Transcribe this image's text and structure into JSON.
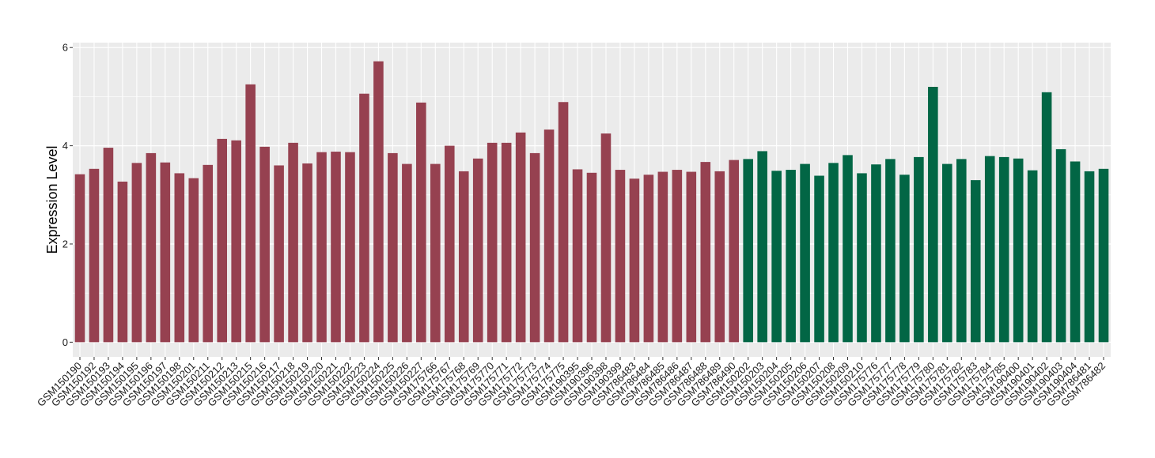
{
  "colors": {
    "panel_background": "#EBEBEB",
    "gridline": "#FFFFFF",
    "tick": "#333333",
    "group_a": "#964150",
    "group_b": "#026645"
  },
  "chart_data": {
    "type": "bar",
    "title": "",
    "xlabel": "",
    "ylabel": "Expression Level",
    "ylim": [
      -0.3,
      6.1
    ],
    "yticks": [
      0,
      2,
      4,
      6
    ],
    "grid": true,
    "legend": "none",
    "categories": [
      "GSM150190",
      "GSM150192",
      "GSM150193",
      "GSM150194",
      "GSM150195",
      "GSM150196",
      "GSM150197",
      "GSM150198",
      "GSM150201",
      "GSM150211",
      "GSM150212",
      "GSM150213",
      "GSM150215",
      "GSM150216",
      "GSM150217",
      "GSM150218",
      "GSM150219",
      "GSM150220",
      "GSM150221",
      "GSM150222",
      "GSM150223",
      "GSM150224",
      "GSM150225",
      "GSM150226",
      "GSM150227",
      "GSM175766",
      "GSM175767",
      "GSM175768",
      "GSM175769",
      "GSM175770",
      "GSM175771",
      "GSM175772",
      "GSM175773",
      "GSM175774",
      "GSM175775",
      "GSM190395",
      "GSM190396",
      "GSM190398",
      "GSM190399",
      "GSM786483",
      "GSM786484",
      "GSM786485",
      "GSM786486",
      "GSM786487",
      "GSM786488",
      "GSM786489",
      "GSM786490",
      "GSM150202",
      "GSM150203",
      "GSM150204",
      "GSM150205",
      "GSM150206",
      "GSM150207",
      "GSM150208",
      "GSM150209",
      "GSM150210",
      "GSM175776",
      "GSM175777",
      "GSM175778",
      "GSM175779",
      "GSM175780",
      "GSM175781",
      "GSM175782",
      "GSM175783",
      "GSM175784",
      "GSM175785",
      "GSM190400",
      "GSM190401",
      "GSM190402",
      "GSM190403",
      "GSM190404",
      "GSM786481",
      "GSM786482"
    ],
    "values": [
      3.42,
      3.53,
      3.96,
      3.27,
      3.65,
      3.85,
      3.66,
      3.44,
      3.34,
      3.61,
      4.14,
      4.11,
      5.25,
      3.98,
      3.6,
      4.06,
      3.64,
      3.87,
      3.88,
      3.87,
      5.06,
      5.72,
      3.85,
      3.63,
      4.88,
      3.63,
      4.0,
      3.48,
      3.74,
      4.06,
      4.06,
      4.27,
      3.85,
      4.33,
      4.89,
      3.52,
      3.45,
      4.25,
      3.51,
      3.33,
      3.41,
      3.47,
      3.51,
      3.47,
      3.67,
      3.48,
      3.71,
      3.73,
      3.89,
      3.49,
      3.51,
      3.63,
      3.39,
      3.65,
      3.81,
      3.44,
      3.62,
      3.73,
      3.41,
      3.77,
      5.2,
      3.63,
      3.73,
      3.3,
      3.79,
      3.77,
      3.74,
      3.5,
      5.09,
      3.93,
      3.68,
      3.48,
      3.53
    ],
    "groups": [
      "a",
      "a",
      "a",
      "a",
      "a",
      "a",
      "a",
      "a",
      "a",
      "a",
      "a",
      "a",
      "a",
      "a",
      "a",
      "a",
      "a",
      "a",
      "a",
      "a",
      "a",
      "a",
      "a",
      "a",
      "a",
      "a",
      "a",
      "a",
      "a",
      "a",
      "a",
      "a",
      "a",
      "a",
      "a",
      "a",
      "a",
      "a",
      "a",
      "a",
      "a",
      "a",
      "a",
      "a",
      "a",
      "a",
      "a",
      "b",
      "b",
      "b",
      "b",
      "b",
      "b",
      "b",
      "b",
      "b",
      "b",
      "b",
      "b",
      "b",
      "b",
      "b",
      "b",
      "b",
      "b",
      "b",
      "b",
      "b",
      "b",
      "b",
      "b",
      "b",
      "b"
    ]
  }
}
